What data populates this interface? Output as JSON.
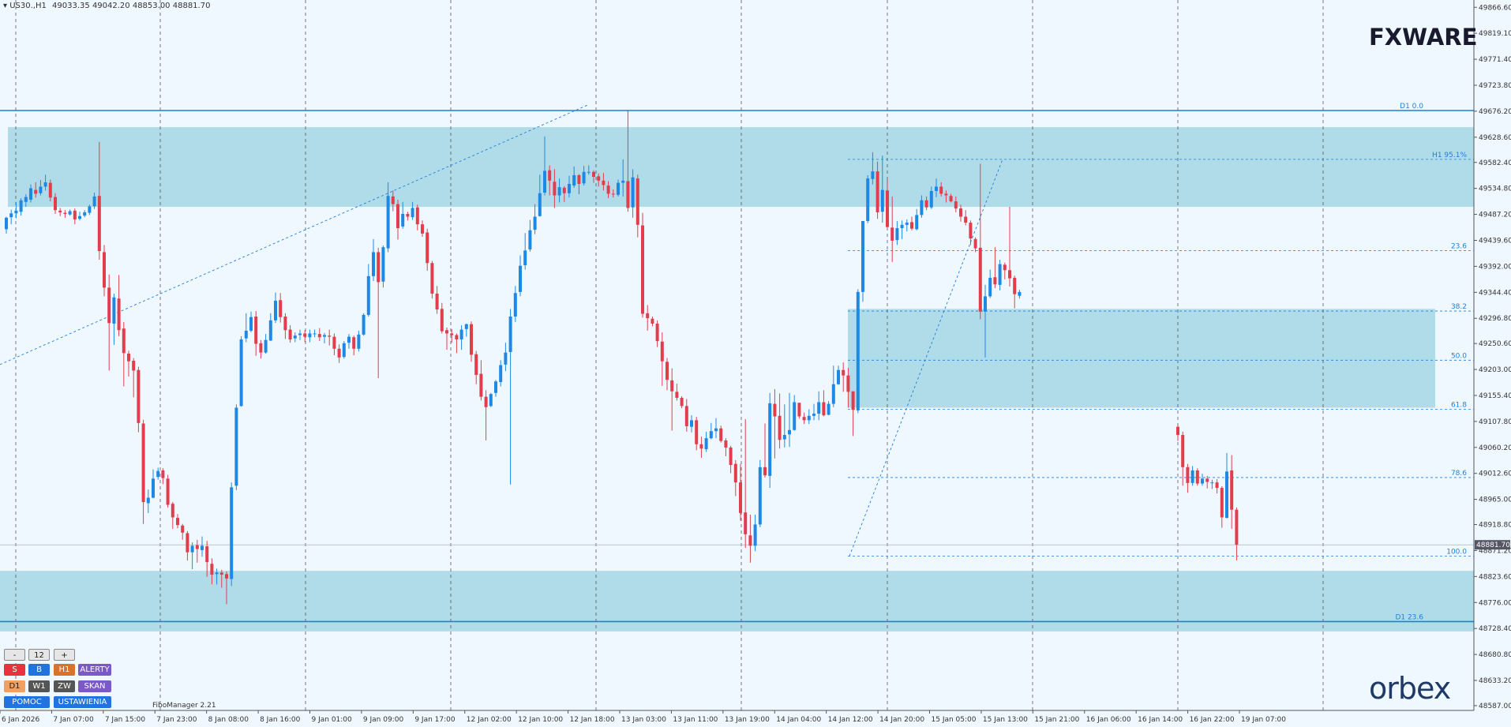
{
  "header": {
    "symbol": "US30.,H1",
    "ohlc": "49033.35 49042.20 48853.00 48881.70"
  },
  "logos": {
    "top": "FXWARE",
    "bottom": "orbex"
  },
  "colors": {
    "bull": "#1e88e5",
    "bear": "#e23d4d",
    "zone": "#a8d8e8",
    "line": "#1e7fd8",
    "grid": "#333333",
    "bg": "#f0f8ff"
  },
  "controls": {
    "minus": "-",
    "value": "12",
    "plus": "+",
    "row1": [
      "S",
      "B",
      "H1",
      "ALERTY"
    ],
    "row2": [
      "D1",
      "W1",
      "ZW",
      "SKAN"
    ],
    "row3": [
      "POMOC",
      "USTAWIENIA"
    ]
  },
  "footer": {
    "indicator": "FiboManager 2.21"
  },
  "chart_data": {
    "type": "candlestick",
    "ylim": [
      48571.0,
      49880.0
    ],
    "current_price": "48881.70",
    "y_ticks": [
      "49866.60",
      "49819.10",
      "49771.40",
      "49723.80",
      "49676.20",
      "49628.60",
      "49582.40",
      "49534.80",
      "49487.20",
      "49439.60",
      "49392.00",
      "49344.40",
      "49296.80",
      "49250.60",
      "49203.00",
      "49155.40",
      "49107.80",
      "49060.20",
      "49012.60",
      "48965.00",
      "48918.80",
      "48871.20",
      "48823.60",
      "48776.00",
      "48728.40",
      "48680.80",
      "48633.20",
      "48587.00"
    ],
    "x_ticks": [
      "6 Jan 2026",
      "7 Jan 07:00",
      "7 Jan 15:00",
      "7 Jan 23:00",
      "8 Jan 08:00",
      "8 Jan 16:00",
      "9 Jan 01:00",
      "9 Jan 09:00",
      "9 Jan 17:00",
      "12 Jan 02:00",
      "12 Jan 10:00",
      "12 Jan 18:00",
      "13 Jan 03:00",
      "13 Jan 11:00",
      "13 Jan 19:00",
      "14 Jan 04:00",
      "14 Jan 12:00",
      "14 Jan 20:00",
      "15 Jan 05:00",
      "15 Jan 13:00",
      "15 Jan 21:00",
      "16 Jan 06:00",
      "16 Jan 14:00",
      "16 Jan 22:00",
      "19 Jan 07:00"
    ],
    "levels": [
      {
        "price": 49677.5,
        "label": "D1 0.0"
      },
      {
        "price": 48741.0,
        "label": "D1 23.6"
      }
    ],
    "fib_levels": [
      {
        "price": 49588.0,
        "label": "H1 95.1%"
      },
      {
        "price": 49421.0,
        "label": "23.6"
      },
      {
        "price": 49310.0,
        "label": "38.2"
      },
      {
        "price": 49220.0,
        "label": "50.0"
      },
      {
        "price": 49130.0,
        "label": "61.8"
      },
      {
        "price": 49005.0,
        "label": "78.6"
      },
      {
        "price": 48861.0,
        "label": "100.0"
      }
    ],
    "zones": [
      {
        "top": 49647.0,
        "bottom": 49501.0
      },
      {
        "top": 49314.0,
        "bottom": 49133.0
      },
      {
        "top": 48834.0,
        "bottom": 48723.0
      }
    ],
    "candles": [
      [
        49460,
        49481,
        49452,
        49483
      ],
      [
        49482,
        49489,
        49469,
        49496
      ],
      [
        49489,
        49494,
        49480,
        49510
      ],
      [
        49492,
        49513,
        49485,
        49517
      ],
      [
        49510,
        49519,
        49501,
        49524
      ],
      [
        49514,
        49535,
        49509,
        49542
      ],
      [
        49532,
        49525,
        49518,
        49546
      ],
      [
        49526,
        49538,
        49522,
        49550
      ],
      [
        49538,
        49546,
        49531,
        49560
      ],
      [
        49545,
        49518,
        49511,
        49551
      ],
      [
        49519,
        49495,
        49488,
        49526
      ],
      [
        49494,
        49491,
        49484,
        49499
      ],
      [
        49490,
        49488,
        49481,
        49495
      ],
      [
        49487,
        49493,
        49485,
        49496
      ],
      [
        49494,
        49478,
        49469,
        49498
      ],
      [
        49479,
        49484,
        49476,
        49492
      ],
      [
        49485,
        49491,
        49482,
        49495
      ],
      [
        49490,
        49502,
        49486,
        49505
      ],
      [
        49502,
        49520,
        49497,
        49527
      ],
      [
        49521,
        49420,
        49404,
        49620
      ],
      [
        49418,
        49353,
        49337,
        49431
      ],
      [
        49353,
        49288,
        49201,
        49377
      ],
      [
        49287,
        49335,
        49248,
        49342
      ],
      [
        49333,
        49275,
        49264,
        49376
      ],
      [
        49278,
        49233,
        49172,
        49290
      ],
      [
        49232,
        49218,
        49190,
        49237
      ],
      [
        49219,
        49201,
        49152,
        49224
      ],
      [
        49202,
        49105,
        49088,
        49208
      ],
      [
        49104,
        48960,
        48920,
        49111
      ],
      [
        48958,
        48968,
        48940,
        48983
      ],
      [
        48968,
        49003,
        48967,
        49020
      ],
      [
        49006,
        49017,
        49001,
        49023
      ],
      [
        49018,
        49004,
        48993,
        49022
      ],
      [
        49003,
        48955,
        48950,
        49010
      ],
      [
        48957,
        48932,
        48911,
        48960
      ],
      [
        48931,
        48918,
        48912,
        48938
      ],
      [
        48917,
        48904,
        48891,
        48920
      ],
      [
        48903,
        48868,
        48853,
        48907
      ],
      [
        48868,
        48880,
        48837,
        48886
      ],
      [
        48881,
        48874,
        48849,
        48891
      ],
      [
        48872,
        48880,
        48860,
        48897
      ],
      [
        48879,
        48850,
        48823,
        48889
      ],
      [
        48847,
        48827,
        48809,
        48857
      ],
      [
        48828,
        48831,
        48809,
        48838
      ],
      [
        48831,
        48827,
        48803,
        48836
      ],
      [
        48828,
        48820,
        48773,
        48833
      ],
      [
        48819,
        48987,
        48806,
        48996
      ],
      [
        48990,
        49133,
        48982,
        49139
      ],
      [
        49136,
        49258,
        49135,
        49264
      ],
      [
        49260,
        49274,
        49253,
        49306
      ],
      [
        49274,
        49299,
        49271,
        49309
      ],
      [
        49300,
        49250,
        49228,
        49310
      ],
      [
        49251,
        49234,
        49223,
        49257
      ],
      [
        49234,
        49257,
        49232,
        49268
      ],
      [
        49256,
        49293,
        49255,
        49306
      ],
      [
        49293,
        49329,
        49288,
        49344
      ],
      [
        49330,
        49299,
        49289,
        49343
      ],
      [
        49300,
        49275,
        49259,
        49306
      ],
      [
        49276,
        49258,
        49252,
        49284
      ],
      [
        49260,
        49265,
        49253,
        49271
      ],
      [
        49266,
        49269,
        49257,
        49276
      ],
      [
        49269,
        49263,
        49253,
        49275
      ],
      [
        49262,
        49269,
        49253,
        49276
      ],
      [
        49269,
        49269,
        49262,
        49276
      ],
      [
        49268,
        49262,
        49255,
        49279
      ],
      [
        49263,
        49266,
        49251,
        49270
      ],
      [
        49265,
        49263,
        49247,
        49276
      ],
      [
        49263,
        49241,
        49229,
        49269
      ],
      [
        49241,
        49225,
        49215,
        49249
      ],
      [
        49226,
        49251,
        49223,
        49255
      ],
      [
        49252,
        49263,
        49241,
        49268
      ],
      [
        49262,
        49241,
        49229,
        49265
      ],
      [
        49241,
        49267,
        49236,
        49274
      ],
      [
        49267,
        49303,
        49265,
        49306
      ],
      [
        49303,
        49374,
        49300,
        49396
      ],
      [
        49374,
        49418,
        49365,
        49442
      ],
      [
        49418,
        49363,
        49187,
        49426
      ],
      [
        49364,
        49427,
        49353,
        49430
      ],
      [
        49425,
        49521,
        49418,
        49546
      ],
      [
        49520,
        49506,
        49493,
        49531
      ],
      [
        49506,
        49462,
        49441,
        49514
      ],
      [
        49465,
        49488,
        49461,
        49510
      ],
      [
        49488,
        49483,
        49476,
        49492
      ],
      [
        49482,
        49499,
        49477,
        49510
      ],
      [
        49500,
        49469,
        49458,
        49505
      ],
      [
        49469,
        49452,
        49446,
        49476
      ],
      [
        49454,
        49398,
        49384,
        49461
      ],
      [
        49398,
        49342,
        49333,
        49402
      ],
      [
        49342,
        49313,
        49305,
        49356
      ],
      [
        49314,
        49273,
        49269,
        49325
      ],
      [
        49275,
        49269,
        49239,
        49280
      ],
      [
        49269,
        49266,
        49252,
        49277
      ],
      [
        49266,
        49258,
        49233,
        49269
      ],
      [
        49258,
        49276,
        49239,
        49284
      ],
      [
        49277,
        49286,
        49263,
        49287
      ],
      [
        49286,
        49230,
        49217,
        49291
      ],
      [
        49231,
        49193,
        49176,
        49237
      ],
      [
        49195,
        49153,
        49146,
        49220
      ],
      [
        49153,
        49134,
        49073,
        49165
      ],
      [
        49136,
        49158,
        49134,
        49160
      ],
      [
        49160,
        49181,
        49153,
        49184
      ],
      [
        49180,
        49211,
        49172,
        49220
      ],
      [
        49212,
        49234,
        49200,
        49252
      ],
      [
        49235,
        49300,
        48992,
        49314
      ],
      [
        49300,
        49343,
        49290,
        49356
      ],
      [
        49345,
        49393,
        49337,
        49412
      ],
      [
        49394,
        49421,
        49386,
        49453
      ],
      [
        49423,
        49458,
        49419,
        49477
      ],
      [
        49459,
        49483,
        49451,
        49506
      ],
      [
        49484,
        49526,
        49483,
        49560
      ],
      [
        49527,
        49567,
        49522,
        49630
      ],
      [
        49568,
        49549,
        49522,
        49577
      ],
      [
        49547,
        49522,
        49499,
        49570
      ],
      [
        49522,
        49537,
        49509,
        49553
      ],
      [
        49536,
        49526,
        49510,
        49539
      ],
      [
        49526,
        49543,
        49518,
        49558
      ],
      [
        49540,
        49559,
        49536,
        49575
      ],
      [
        49559,
        49543,
        49524,
        49561
      ],
      [
        49544,
        49565,
        49540,
        49576
      ],
      [
        49565,
        49565,
        49560,
        49577
      ],
      [
        49565,
        49556,
        49545,
        49568
      ],
      [
        49557,
        49549,
        49538,
        49562
      ],
      [
        49549,
        49541,
        49531,
        49563
      ],
      [
        49540,
        49525,
        49517,
        49548
      ],
      [
        49525,
        49524,
        49518,
        49533
      ],
      [
        49523,
        49545,
        49520,
        49551
      ],
      [
        49545,
        49549,
        49520,
        49588
      ],
      [
        49548,
        49499,
        49492,
        49677
      ],
      [
        49500,
        49555,
        49481,
        49570
      ],
      [
        49553,
        49468,
        49445,
        49560
      ],
      [
        49467,
        49305,
        49298,
        49490
      ],
      [
        49306,
        49297,
        49274,
        49321
      ],
      [
        49296,
        49287,
        49282,
        49300
      ],
      [
        49287,
        49255,
        49244,
        49293
      ],
      [
        49254,
        49218,
        49173,
        49271
      ],
      [
        49217,
        49184,
        49165,
        49224
      ],
      [
        49183,
        49163,
        49091,
        49205
      ],
      [
        49162,
        49151,
        49146,
        49177
      ],
      [
        49151,
        49136,
        49132,
        49154
      ],
      [
        49136,
        49099,
        49089,
        49149
      ],
      [
        49098,
        49110,
        49088,
        49119
      ],
      [
        49110,
        49066,
        49055,
        49116
      ],
      [
        49066,
        49058,
        49041,
        49080
      ],
      [
        49057,
        49077,
        49052,
        49089
      ],
      [
        49077,
        49090,
        49075,
        49105
      ],
      [
        49090,
        49095,
        49077,
        49114
      ],
      [
        49095,
        49072,
        49069,
        49100
      ],
      [
        49073,
        49060,
        49044,
        49077
      ],
      [
        49060,
        49028,
        49013,
        49063
      ],
      [
        49030,
        48996,
        48971,
        49037
      ],
      [
        48996,
        48940,
        48926,
        49030
      ],
      [
        48941,
        48901,
        48876,
        49112
      ],
      [
        48899,
        48880,
        48849,
        48937
      ],
      [
        48880,
        48919,
        48870,
        48937
      ],
      [
        48919,
        49024,
        48914,
        49037
      ],
      [
        49024,
        49009,
        49005,
        49104
      ],
      [
        49008,
        49141,
        48986,
        49160
      ],
      [
        49140,
        49117,
        49040,
        49167
      ],
      [
        49118,
        49074,
        49058,
        49159
      ],
      [
        49075,
        49083,
        49060,
        49139
      ],
      [
        49084,
        49092,
        49061,
        49160
      ],
      [
        49092,
        49143,
        49091,
        49156
      ],
      [
        49142,
        49117,
        49113,
        49137
      ],
      [
        49116,
        49110,
        49103,
        49124
      ],
      [
        49110,
        49118,
        49103,
        49130
      ],
      [
        49118,
        49122,
        49110,
        49140
      ],
      [
        49122,
        49143,
        49110,
        49163
      ],
      [
        49143,
        49119,
        49117,
        49165
      ],
      [
        49120,
        49140,
        49119,
        49145
      ],
      [
        49140,
        49176,
        49134,
        49210
      ],
      [
        49176,
        49202,
        49175,
        49210
      ],
      [
        49202,
        49192,
        49162,
        49216
      ],
      [
        49192,
        49162,
        49133,
        49206
      ],
      [
        49163,
        49129,
        49081,
        49150
      ],
      [
        49128,
        49345,
        49123,
        49350
      ],
      [
        49345,
        49475,
        49327,
        49475
      ],
      [
        49475,
        49553,
        49471,
        49559
      ],
      [
        49552,
        49566,
        49542,
        49601
      ],
      [
        49566,
        49491,
        49479,
        49584
      ],
      [
        49492,
        49532,
        49472,
        49595
      ],
      [
        49531,
        49464,
        49461,
        49552
      ],
      [
        49463,
        49439,
        49400,
        49520
      ],
      [
        49440,
        49462,
        49431,
        49475
      ],
      [
        49462,
        49468,
        49442,
        49476
      ],
      [
        49468,
        49472,
        49456,
        49478
      ],
      [
        49473,
        49461,
        49458,
        49483
      ],
      [
        49460,
        49486,
        49458,
        49497
      ],
      [
        49486,
        49513,
        49481,
        49522
      ],
      [
        49513,
        49500,
        49495,
        49520
      ],
      [
        49500,
        49530,
        49497,
        49538
      ],
      [
        49530,
        49538,
        49519,
        49553
      ],
      [
        49538,
        49525,
        49520,
        49546
      ],
      [
        49525,
        49522,
        49509,
        49531
      ],
      [
        49521,
        49511,
        49509,
        49525
      ],
      [
        49511,
        49498,
        49491,
        49520
      ],
      [
        49498,
        49483,
        49474,
        49505
      ],
      [
        49483,
        49472,
        49467,
        49495
      ],
      [
        49472,
        49443,
        49431,
        49476
      ],
      [
        49442,
        49425,
        49418,
        49445
      ],
      [
        49426,
        49309,
        49295,
        49580
      ],
      [
        49309,
        49337,
        49225,
        49358
      ],
      [
        49337,
        49371,
        49334,
        49386
      ],
      [
        49372,
        49359,
        49352,
        49427
      ],
      [
        49358,
        49396,
        49348,
        49404
      ],
      [
        49395,
        49385,
        49368,
        49399
      ],
      [
        49385,
        49370,
        49355,
        49501
      ],
      [
        49371,
        49341,
        49315,
        49375
      ],
      [
        49338,
        49345,
        49333,
        49349
      ]
    ],
    "candles2": [
      [
        49098,
        49083,
        49072,
        49102
      ],
      [
        49083,
        49024,
        48990,
        49089
      ],
      [
        49024,
        48995,
        48977,
        49030
      ],
      [
        48995,
        49018,
        48990,
        49026
      ],
      [
        49018,
        48994,
        48990,
        49022
      ],
      [
        48994,
        49003,
        48990,
        49012
      ],
      [
        49003,
        48997,
        48985,
        49008
      ],
      [
        48996,
        48996,
        48984,
        49001
      ],
      [
        48996,
        48986,
        48976,
        49002
      ],
      [
        48986,
        48932,
        48913,
        48989
      ],
      [
        48931,
        49016,
        48930,
        49050
      ],
      [
        49018,
        48946,
        48911,
        49046
      ],
      [
        48946,
        48882,
        48853,
        48950
      ]
    ]
  }
}
